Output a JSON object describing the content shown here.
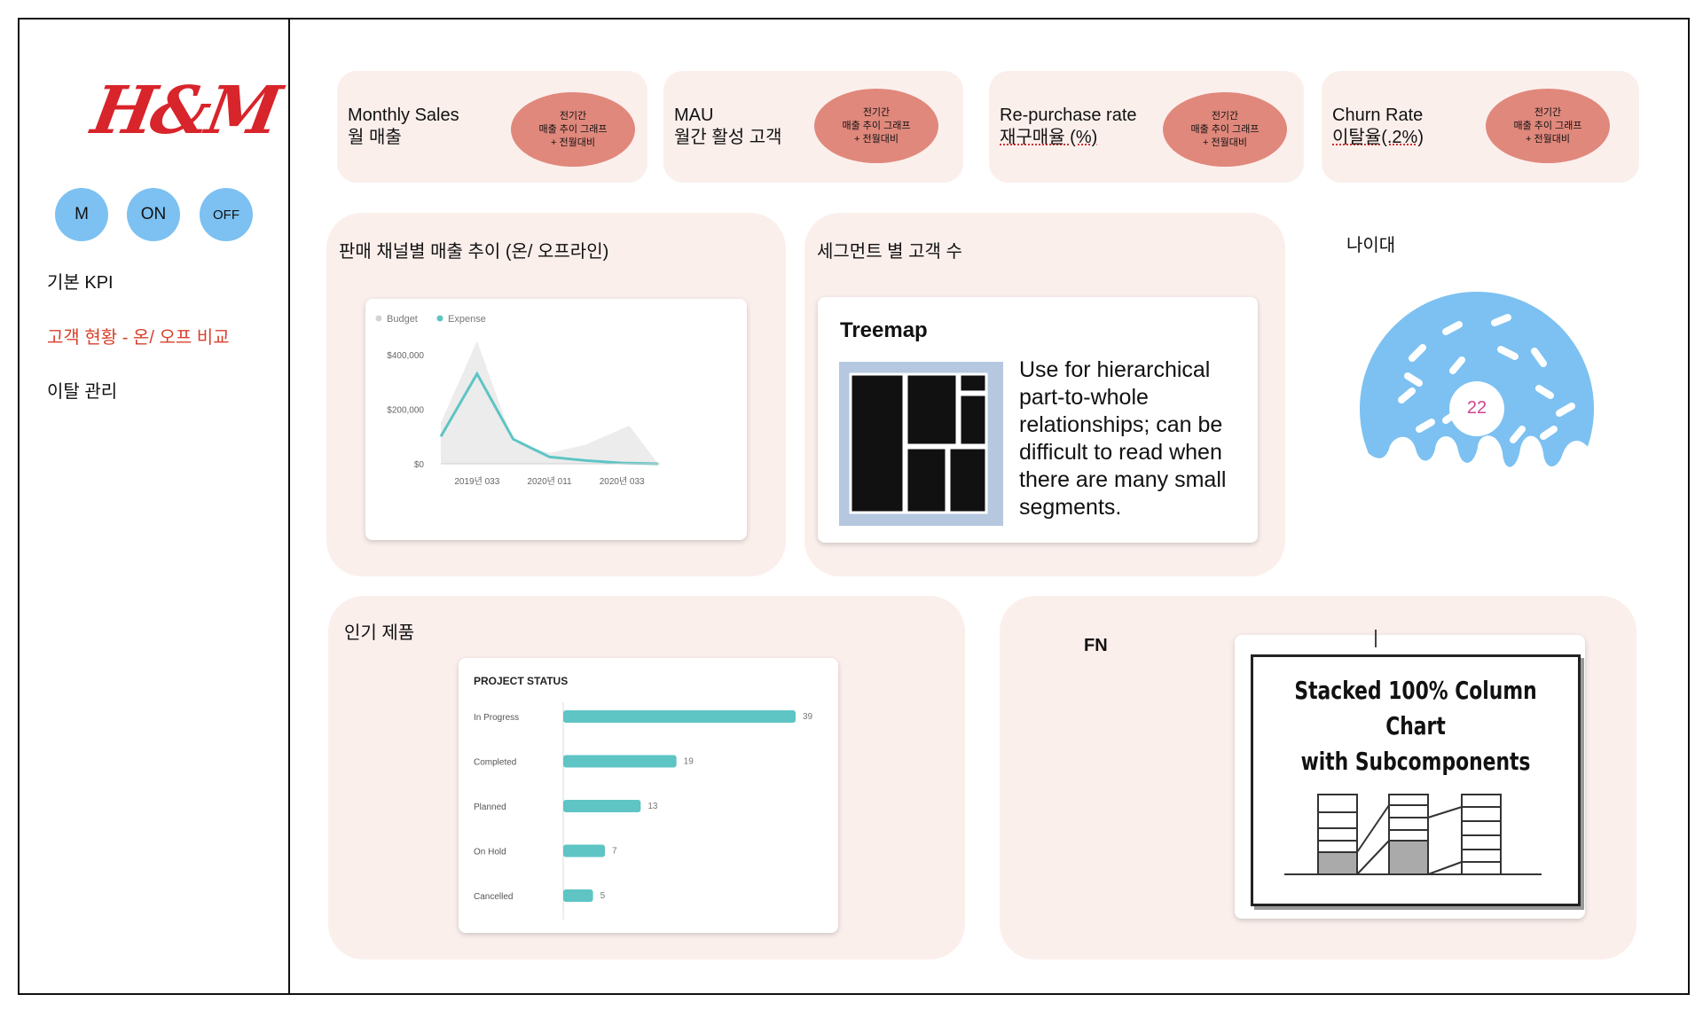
{
  "brand": {
    "logo_text": "H&M",
    "accent": "#d8412c",
    "logo_color": "#d8242b"
  },
  "sidebar": {
    "pills": [
      {
        "label": "M"
      },
      {
        "label": "ON"
      },
      {
        "label": "OFF"
      }
    ],
    "nav": [
      {
        "label": "기본 KPI",
        "active": false
      },
      {
        "label": "고객 현황 - 온/ 오프 비교",
        "active": true
      },
      {
        "label": "이탈 관리",
        "active": false
      }
    ]
  },
  "kpis": [
    {
      "title": "Monthly Sales",
      "subtitle": "월 매출",
      "oval": [
        "전기간",
        "매출 추이 그래프",
        "+ 전월대비"
      ]
    },
    {
      "title": "MAU",
      "subtitle": "월간 활성 고객",
      "oval": [
        "전기간",
        "매출 추이 그래프",
        "+ 전월대비"
      ]
    },
    {
      "title": "Re-purchase rate",
      "subtitle": "재구매율 (%)",
      "oval": [
        "전기간",
        "매출 추이 그래프",
        "+ 전월대비"
      ]
    },
    {
      "title": "Churn Rate",
      "subtitle": "이탈율(.2%)",
      "oval": [
        "전기간",
        "매출 추이 그래프",
        "+ 전월대비"
      ]
    }
  ],
  "panels": {
    "channel": {
      "title": "판매 채널별 매출 추이 (온/ 오프라인)"
    },
    "segment": {
      "title": "세그먼트 별 고객 수"
    },
    "age": {
      "title": "나이대",
      "donut_value": "22"
    },
    "popular": {
      "title": "인기 제품"
    },
    "fn": {
      "title": "FN"
    }
  },
  "treemap": {
    "title": "Treemap",
    "description": "Use for hierarchical part-to-whole relationships; can be difficult to read when there are many small segments."
  },
  "stacked_image": {
    "line1": "Stacked 100% Column Chart",
    "line2": "with Subcomponents"
  },
  "chart_data": [
    {
      "type": "line",
      "legend": [
        "Budget",
        "Expense"
      ],
      "legend_position": "top-left",
      "x": [
        "2019년 033",
        "",
        "2020년 011",
        "",
        "2020년 033"
      ],
      "xticks": [
        "2019년 033",
        "2020년 011",
        "2020년 033"
      ],
      "yticks": [
        "$0",
        "$200,000",
        "$400,000"
      ],
      "ylim": [
        0,
        500000
      ],
      "series": [
        {
          "name": "Budget",
          "type": "area",
          "color": "#ececec",
          "x": [
            0,
            0.5,
            1,
            1.5,
            2,
            2.6,
            3
          ],
          "values": [
            150000,
            450000,
            80000,
            40000,
            70000,
            140000,
            0
          ]
        },
        {
          "name": "Expense",
          "type": "line",
          "color": "#5ec4c4",
          "x": [
            0,
            0.5,
            1,
            1.5,
            2,
            2.5,
            3
          ],
          "values": [
            100000,
            330000,
            90000,
            25000,
            12000,
            3000,
            0
          ]
        }
      ],
      "grid": false
    },
    {
      "type": "bar",
      "orientation": "horizontal",
      "title": "PROJECT STATUS",
      "categories": [
        "In Progress",
        "Completed",
        "Planned",
        "On Hold",
        "Cancelled"
      ],
      "values": [
        39,
        19,
        13,
        7,
        5
      ],
      "color": "#5ec4c4"
    }
  ]
}
